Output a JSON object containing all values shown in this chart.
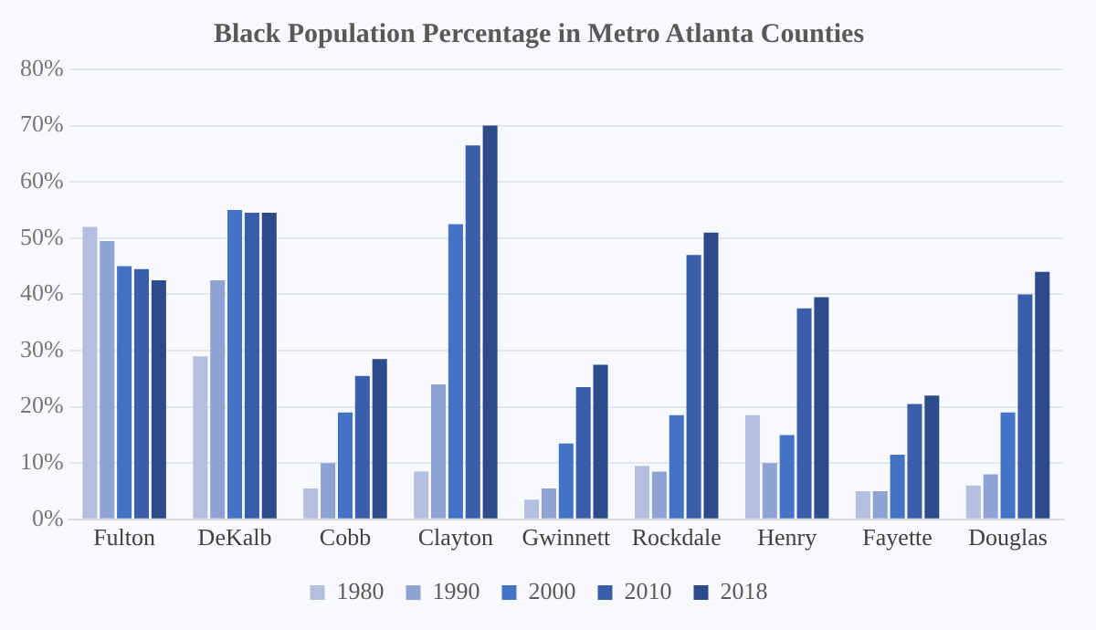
{
  "chart_data": {
    "type": "bar",
    "title": "Black Population Percentage in Metro Atlanta Counties",
    "categories": [
      "Fulton",
      "DeKalb",
      "Cobb",
      "Clayton",
      "Gwinnett",
      "Rockdale",
      "Henry",
      "Fayette",
      "Douglas"
    ],
    "series": [
      {
        "name": "1980",
        "color": "#b4bfdf",
        "values": [
          52,
          29,
          5.5,
          8.5,
          3.5,
          9.5,
          18.5,
          5,
          6
        ]
      },
      {
        "name": "1990",
        "color": "#8fa3d3",
        "values": [
          49.5,
          42.5,
          10,
          24,
          5.5,
          8.5,
          10,
          5,
          8
        ]
      },
      {
        "name": "2000",
        "color": "#4472c4",
        "values": [
          45,
          55,
          19,
          52.5,
          13.5,
          18.5,
          15,
          11.5,
          19
        ]
      },
      {
        "name": "2010",
        "color": "#3a5ea9",
        "values": [
          44.5,
          54.5,
          25.5,
          66.5,
          23.5,
          47,
          37.5,
          20.5,
          40
        ]
      },
      {
        "name": "2018",
        "color": "#2d4a8a",
        "values": [
          42.5,
          54.5,
          28.5,
          70,
          27.5,
          51,
          39.5,
          22,
          44
        ]
      }
    ],
    "ylim": [
      0,
      80
    ],
    "yticks": [
      {
        "value": 0,
        "label": "0%"
      },
      {
        "value": 10,
        "label": "10%"
      },
      {
        "value": 20,
        "label": "20%"
      },
      {
        "value": 30,
        "label": "30%"
      },
      {
        "value": 40,
        "label": "40%"
      },
      {
        "value": 50,
        "label": "50%"
      },
      {
        "value": 60,
        "label": "60%"
      },
      {
        "value": 70,
        "label": "70%"
      },
      {
        "value": 80,
        "label": "80%"
      }
    ],
    "grid": "y",
    "legend": "bottom"
  }
}
